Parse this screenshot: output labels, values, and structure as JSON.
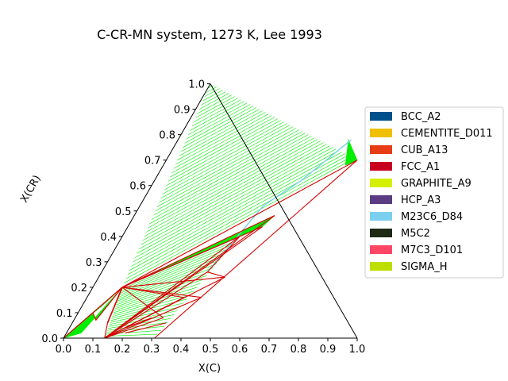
{
  "chart_data": {
    "type": "ternary-phase-diagram",
    "title": "C-CR-MN system, 1273 K, Lee 1993",
    "xlabel": "X(C)",
    "ylabel": "X(CR)",
    "xlim": [
      0,
      1
    ],
    "ylim": [
      0,
      1
    ],
    "x_ticks": [
      "0.0",
      "0.1",
      "0.2",
      "0.3",
      "0.4",
      "0.5",
      "0.6",
      "0.7",
      "0.8",
      "0.9",
      "1.0"
    ],
    "y_ticks": [
      "0.0",
      "0.1",
      "0.2",
      "0.3",
      "0.4",
      "0.5",
      "0.6",
      "0.7",
      "0.8",
      "0.9",
      "1.0"
    ],
    "legend_position": "right",
    "legend": [
      {
        "name": "BCC_A2",
        "color": "#00508c"
      },
      {
        "name": "CEMENTITE_D011",
        "color": "#f0c000"
      },
      {
        "name": "CUB_A13",
        "color": "#e83c14"
      },
      {
        "name": "FCC_A1",
        "color": "#c8001e"
      },
      {
        "name": "GRAPHITE_A9",
        "color": "#d4f000"
      },
      {
        "name": "HCP_A3",
        "color": "#5a3c82"
      },
      {
        "name": "M23C6_D84",
        "color": "#7ccfef"
      },
      {
        "name": "M5C2",
        "color": "#1e2a14"
      },
      {
        "name": "M7C3_D101",
        "color": "#ff4664"
      },
      {
        "name": "SIGMA_H",
        "color": "#bede00"
      }
    ],
    "colors": {
      "tieline": "#00ee00",
      "boundary": "#d80000",
      "m23c6_tieline": "#7ccfef",
      "graphite_boundary": "#ff5a5a"
    },
    "boundaries": [
      [
        [
          0.1,
          0.2
        ],
        [
          0.65,
          0.7
        ]
      ],
      [
        [
          0.1,
          0.2
        ],
        [
          0.478,
          0.482
        ]
      ],
      [
        [
          0.1,
          0.2
        ],
        [
          0.458,
          0.438
        ]
      ],
      [
        [
          0.1,
          0.2
        ],
        [
          0.4,
          0.4
        ]
      ],
      [
        [
          0.1,
          0.2
        ],
        [
          0.43,
          0.24
        ]
      ],
      [
        [
          0.1,
          0.2
        ],
        [
          0.39,
          0.16
        ]
      ],
      [
        [
          0.1,
          0.2
        ],
        [
          0.33,
          0.16
        ]
      ],
      [
        [
          0.1,
          0.2
        ],
        [
          0.3,
          0.08
        ]
      ],
      [
        [
          0.1,
          0.2
        ],
        [
          0.12,
          0.06
        ]
      ],
      [
        [
          0.1,
          0.2
        ],
        [
          0.0,
          0.0
        ]
      ],
      [
        [
          0.0,
          0.0
        ],
        [
          0.05,
          0.1
        ]
      ],
      [
        [
          0.05,
          0.1
        ],
        [
          0.1,
          0.2
        ]
      ],
      [
        [
          0.05,
          0.1
        ],
        [
          0.075,
          0.07
        ]
      ],
      [
        [
          0.075,
          0.07
        ],
        [
          0.1,
          0.2
        ]
      ],
      [
        [
          0.12,
          0.06
        ],
        [
          0.14,
          0.0
        ]
      ],
      [
        [
          0.14,
          0.0
        ],
        [
          0.25,
          0.0
        ]
      ],
      [
        [
          0.14,
          0.0
        ],
        [
          0.3,
          0.08
        ]
      ],
      [
        [
          0.14,
          0.0
        ],
        [
          0.33,
          0.16
        ]
      ],
      [
        [
          0.14,
          0.0
        ],
        [
          0.39,
          0.16
        ]
      ],
      [
        [
          0.14,
          0.0
        ],
        [
          0.43,
          0.24
        ]
      ],
      [
        [
          0.36,
          0.26
        ],
        [
          0.43,
          0.24
        ]
      ],
      [
        [
          0.36,
          0.26
        ],
        [
          0.4,
          0.4
        ]
      ],
      [
        [
          0.2,
          0.02
        ],
        [
          0.32,
          0.06
        ]
      ],
      [
        [
          0.26,
          0.0
        ],
        [
          0.31,
          0.0
        ]
      ],
      [
        [
          0.19,
          0.04
        ],
        [
          0.26,
          0.08
        ]
      ],
      [
        [
          0.31,
          0.0
        ],
        [
          0.65,
          0.7
        ]
      ],
      [
        [
          0.14,
          0.0
        ],
        [
          0.36,
          0.26
        ]
      ],
      [
        [
          0.14,
          0.0
        ],
        [
          0.4,
          0.4
        ]
      ],
      [
        [
          0.14,
          0.0
        ],
        [
          0.458,
          0.438
        ]
      ],
      [
        [
          0.14,
          0.0
        ],
        [
          0.478,
          0.482
        ]
      ]
    ],
    "filled_regions": [
      [
        [
          0.1,
          0.2
        ],
        [
          0.478,
          0.482
        ],
        [
          0.458,
          0.438
        ]
      ],
      [
        [
          0.1,
          0.2
        ],
        [
          0.4,
          0.4
        ],
        [
          0.43,
          0.44
        ]
      ],
      [
        [
          0.0,
          0.0
        ],
        [
          0.05,
          0.1
        ],
        [
          0.075,
          0.07
        ],
        [
          0.1,
          0.2
        ],
        [
          0.05,
          0.02
        ]
      ],
      [
        [
          0.58,
          0.78
        ],
        [
          0.65,
          0.7
        ],
        [
          0.62,
          0.68
        ]
      ]
    ],
    "m23c6_edge": [
      [
        0.36,
        0.26
      ],
      [
        0.42,
        0.52
      ],
      [
        0.5,
        0.62
      ],
      [
        0.59,
        0.78
      ]
    ],
    "m5c2_edge": [
      [
        0.1,
        0.2
      ],
      [
        0.12,
        0.06
      ]
    ],
    "tieline_fans": [
      {
        "from_edge": [
          [
            0.0,
            1.0
          ],
          [
            0.1,
            0.2
          ]
        ],
        "to_edge": [
          [
            0.0,
            1.0
          ],
          [
            0.65,
            0.7
          ]
        ],
        "count": 48
      },
      {
        "from_edge": [
          [
            0.1,
            0.2
          ],
          [
            0.14,
            0.0
          ]
        ],
        "to_edge": [
          [
            0.4,
            0.4
          ],
          [
            0.31,
            0.0
          ]
        ],
        "count": 26
      },
      {
        "from_edge": [
          [
            0.0,
            0.0
          ],
          [
            0.1,
            0.2
          ]
        ],
        "to_edge": [
          [
            0.0,
            0.0
          ],
          [
            0.065,
            0.12
          ]
        ],
        "count": 8
      }
    ]
  }
}
